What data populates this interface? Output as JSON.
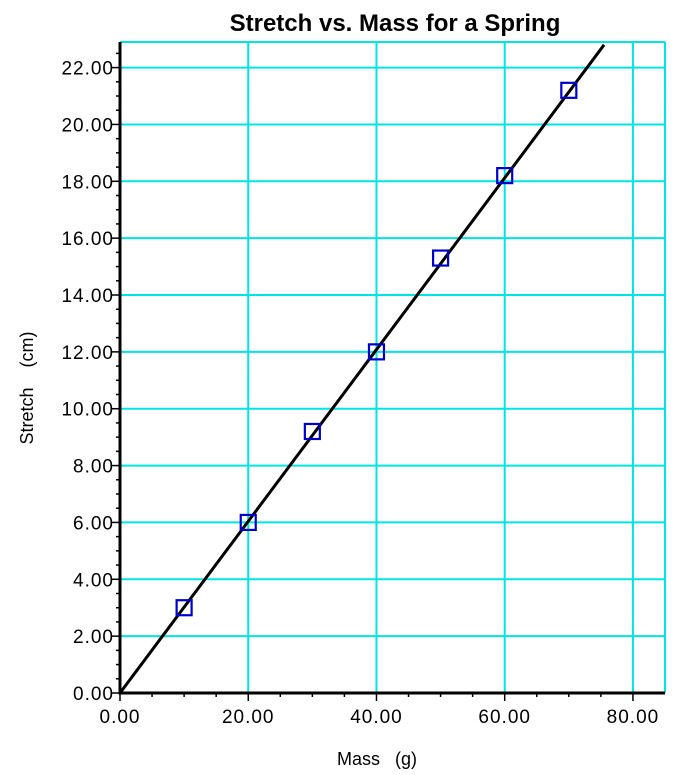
{
  "chart_data": {
    "type": "scatter",
    "title": "Stretch vs. Mass for a Spring",
    "xlabel": "Mass   (g)",
    "ylabel": "Stretch    (cm)",
    "xlim": [
      0,
      85
    ],
    "ylim": [
      0,
      22.9
    ],
    "xticks": [
      "0.00",
      "20.00",
      "40.00",
      "60.00",
      "80.00"
    ],
    "yticks": [
      "0.00",
      "2.00",
      "4.00",
      "6.00",
      "8.00",
      "10.00",
      "12.00",
      "14.00",
      "16.00",
      "18.00",
      "20.00",
      "22.00"
    ],
    "grid": true,
    "series": [
      {
        "marker": "square",
        "x": [
          10,
          20,
          30,
          40,
          50,
          60,
          70
        ],
        "y": [
          3.0,
          6.0,
          9.2,
          12.0,
          15.3,
          18.2,
          21.2
        ]
      }
    ],
    "fit_line": {
      "slope": 0.302,
      "intercept": 0.0,
      "x_range": [
        0,
        75.5
      ]
    },
    "colors": {
      "grid": "#00e5e5",
      "marker": "#0000cc",
      "line": "#000000",
      "axis": "#000000"
    }
  }
}
